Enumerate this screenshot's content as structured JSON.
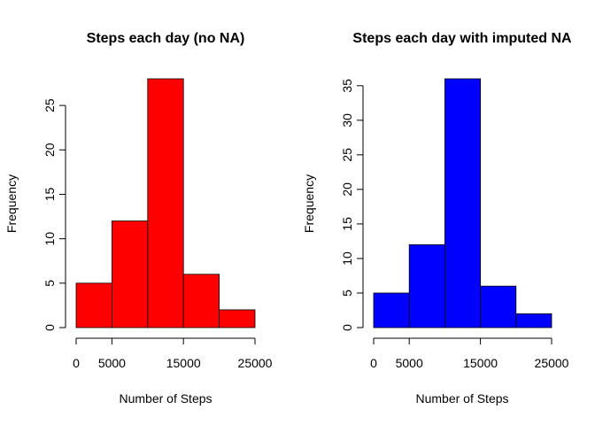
{
  "chart_data": [
    {
      "type": "bar",
      "title": "Steps each day (no NA)",
      "xlabel": "Number of Steps",
      "ylabel": "Frequency",
      "bins": [
        [
          0,
          5000
        ],
        [
          5000,
          10000
        ],
        [
          10000,
          15000
        ],
        [
          15000,
          20000
        ],
        [
          20000,
          25000
        ]
      ],
      "values": [
        5,
        12,
        28,
        6,
        2
      ],
      "xticks": [
        0,
        5000,
        15000,
        25000
      ],
      "xtick_labels": [
        "0",
        "5000",
        "15000",
        "25000"
      ],
      "xlim": [
        0,
        25000
      ],
      "yticks": [
        0,
        5,
        10,
        15,
        20,
        25
      ],
      "yticks_labels": [
        "0",
        "5",
        "10",
        "15",
        "20",
        "25"
      ],
      "ylim": [
        0,
        28
      ],
      "color": "#ff0000",
      "grid": false
    },
    {
      "type": "bar",
      "title": "Steps each day with imputed NA",
      "xlabel": "Number of Steps",
      "ylabel": "Frequency",
      "bins": [
        [
          0,
          5000
        ],
        [
          5000,
          10000
        ],
        [
          10000,
          15000
        ],
        [
          15000,
          20000
        ],
        [
          20000,
          25000
        ]
      ],
      "values": [
        5,
        12,
        36,
        6,
        2
      ],
      "xticks": [
        0,
        5000,
        15000,
        25000
      ],
      "xtick_labels": [
        "0",
        "5000",
        "15000",
        "25000"
      ],
      "xlim": [
        0,
        25000
      ],
      "yticks": [
        0,
        5,
        10,
        15,
        20,
        25,
        30,
        35
      ],
      "yticks_labels": [
        "0",
        "5",
        "10",
        "15",
        "20",
        "25",
        "30",
        "35"
      ],
      "ylim": [
        0,
        36
      ],
      "color": "#0000ff",
      "grid": false
    }
  ]
}
